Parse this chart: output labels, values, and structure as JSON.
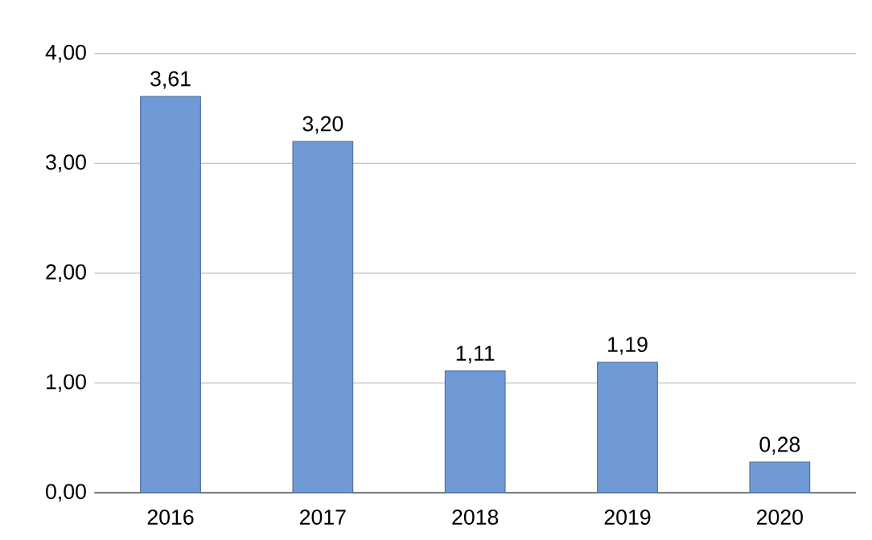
{
  "chart_data": {
    "type": "bar",
    "categories": [
      "2016",
      "2017",
      "2018",
      "2019",
      "2020"
    ],
    "values": [
      3.61,
      3.2,
      1.11,
      1.19,
      0.28
    ],
    "value_labels": [
      "3,61",
      "3,20",
      "1,11",
      "1,19",
      "0,28"
    ],
    "color": "#6f9ad6",
    "ylim": [
      0,
      4
    ],
    "yticks": [
      {
        "value": 0,
        "label": "0,00"
      },
      {
        "value": 1,
        "label": "1,00"
      },
      {
        "value": 2,
        "label": "2,00"
      },
      {
        "value": 3,
        "label": "3,00"
      },
      {
        "value": 4,
        "label": "4,00"
      }
    ],
    "grid": "y"
  }
}
